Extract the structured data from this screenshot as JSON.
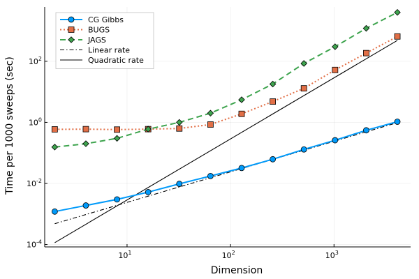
{
  "chart_data": {
    "type": "line",
    "title": "",
    "xlabel": "Dimension",
    "ylabel": "Time per 1000 sweeps (sec)",
    "xscale": "log",
    "yscale": "log",
    "xlim": [
      1.6,
      5500
    ],
    "ylim": [
      8.35e-05,
      6000
    ],
    "x_ticks": [
      {
        "value": 10,
        "base": "10",
        "exp": "1"
      },
      {
        "value": 100,
        "base": "10",
        "exp": "2"
      },
      {
        "value": 1000,
        "base": "10",
        "exp": "3"
      }
    ],
    "y_ticks": [
      {
        "value": 0.0001,
        "base": "10",
        "exp": "-4"
      },
      {
        "value": 0.01,
        "base": "10",
        "exp": "-2"
      },
      {
        "value": 1,
        "base": "10",
        "exp": "0"
      },
      {
        "value": 100,
        "base": "10",
        "exp": "2"
      }
    ],
    "grid": true,
    "legend_position": "top-left",
    "x": [
      2,
      4,
      8,
      16,
      32,
      64,
      128,
      256,
      512,
      1024,
      2048,
      4096
    ],
    "series": [
      {
        "name": "CG Gibbs",
        "color": "#009AFA",
        "dash": "solid",
        "marker": "circle",
        "values": [
          0.0012,
          0.0019,
          0.003,
          0.0052,
          0.0097,
          0.0175,
          0.032,
          0.062,
          0.13,
          0.26,
          0.55,
          1.05
        ]
      },
      {
        "name": "BUGS",
        "color": "#E26F46",
        "dash": "dot",
        "marker": "square",
        "values": [
          0.59,
          0.6,
          0.58,
          0.6,
          0.63,
          0.85,
          1.9,
          4.8,
          13,
          52,
          185,
          650
        ]
      },
      {
        "name": "JAGS",
        "color": "#3EA44E",
        "dash": "dash",
        "marker": "diamond",
        "values": [
          0.155,
          0.2,
          0.3,
          0.6,
          1.0,
          2.0,
          5.5,
          18,
          85,
          300,
          1200,
          4000
        ]
      }
    ],
    "reference_lines": [
      {
        "name": "Linear rate",
        "color": "#000000",
        "dash": "dashdot",
        "x": [
          2,
          4096
        ],
        "values": [
          0.00048,
          0.98
        ]
      },
      {
        "name": "Quadratic rate",
        "color": "#000000",
        "dash": "solid",
        "x": [
          2,
          4096
        ],
        "values": [
          0.000115,
          482
        ]
      }
    ]
  }
}
